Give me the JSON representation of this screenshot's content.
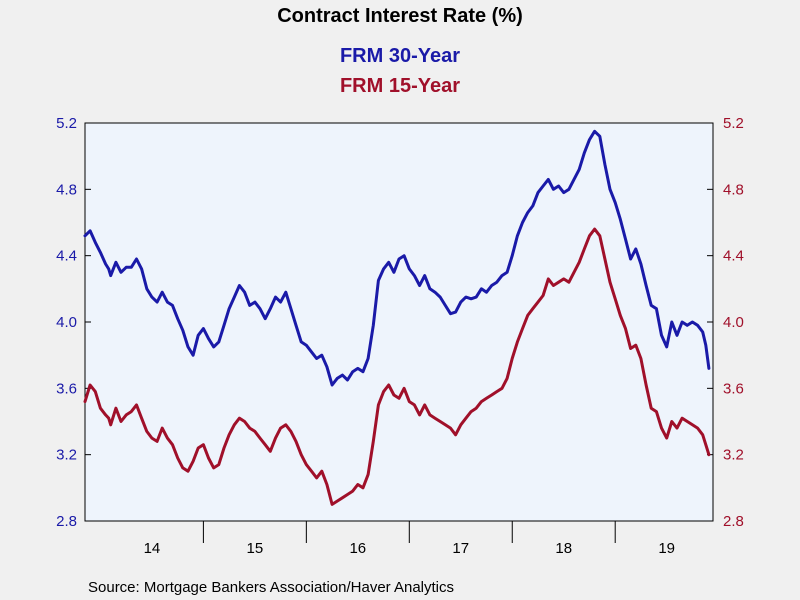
{
  "chart_data": {
    "type": "line",
    "title": "Contract Interest Rate (%)",
    "source": "Source:  Mortgage Bankers Association/Haver Analytics",
    "categories": [
      "14",
      "15",
      "16",
      "17",
      "18",
      "19"
    ],
    "y_ticks": [
      "5.2",
      "4.8",
      "4.4",
      "4.0",
      "3.6",
      "3.2",
      "2.8"
    ],
    "ylim": [
      2.8,
      5.2
    ],
    "xlim": [
      2013.85,
      2019.95
    ],
    "grid": false,
    "legend_placement": "top-center",
    "colors": {
      "plot_bg": "#eef4fc",
      "page_bg": "#f0f0f0"
    },
    "series": [
      {
        "name": "FRM 30-Year",
        "color": "#1a1aa8",
        "axis": "left",
        "points": [
          [
            2013.85,
            4.52
          ],
          [
            2013.9,
            4.55
          ],
          [
            2013.95,
            4.48
          ],
          [
            2014.0,
            4.42
          ],
          [
            2014.05,
            4.35
          ],
          [
            2014.08,
            4.32
          ],
          [
            2014.1,
            4.28
          ],
          [
            2014.15,
            4.36
          ],
          [
            2014.2,
            4.3
          ],
          [
            2014.25,
            4.33
          ],
          [
            2014.3,
            4.33
          ],
          [
            2014.35,
            4.38
          ],
          [
            2014.4,
            4.32
          ],
          [
            2014.45,
            4.2
          ],
          [
            2014.5,
            4.15
          ],
          [
            2014.55,
            4.12
          ],
          [
            2014.6,
            4.18
          ],
          [
            2014.65,
            4.12
          ],
          [
            2014.7,
            4.1
          ],
          [
            2014.75,
            4.02
          ],
          [
            2014.8,
            3.95
          ],
          [
            2014.85,
            3.85
          ],
          [
            2014.9,
            3.8
          ],
          [
            2014.95,
            3.92
          ],
          [
            2015.0,
            3.96
          ],
          [
            2015.05,
            3.9
          ],
          [
            2015.1,
            3.85
          ],
          [
            2015.15,
            3.88
          ],
          [
            2015.2,
            3.98
          ],
          [
            2015.25,
            4.08
          ],
          [
            2015.3,
            4.15
          ],
          [
            2015.35,
            4.22
          ],
          [
            2015.4,
            4.18
          ],
          [
            2015.45,
            4.1
          ],
          [
            2015.5,
            4.12
          ],
          [
            2015.55,
            4.08
          ],
          [
            2015.6,
            4.02
          ],
          [
            2015.65,
            4.08
          ],
          [
            2015.7,
            4.15
          ],
          [
            2015.75,
            4.12
          ],
          [
            2015.8,
            4.18
          ],
          [
            2015.85,
            4.08
          ],
          [
            2015.9,
            3.98
          ],
          [
            2015.95,
            3.88
          ],
          [
            2016.0,
            3.86
          ],
          [
            2016.05,
            3.82
          ],
          [
            2016.1,
            3.78
          ],
          [
            2016.15,
            3.8
          ],
          [
            2016.2,
            3.73
          ],
          [
            2016.25,
            3.62
          ],
          [
            2016.3,
            3.66
          ],
          [
            2016.35,
            3.68
          ],
          [
            2016.4,
            3.65
          ],
          [
            2016.45,
            3.7
          ],
          [
            2016.5,
            3.72
          ],
          [
            2016.55,
            3.7
          ],
          [
            2016.6,
            3.78
          ],
          [
            2016.65,
            3.98
          ],
          [
            2016.7,
            4.25
          ],
          [
            2016.75,
            4.32
          ],
          [
            2016.8,
            4.36
          ],
          [
            2016.85,
            4.3
          ],
          [
            2016.9,
            4.38
          ],
          [
            2016.95,
            4.4
          ],
          [
            2017.0,
            4.32
          ],
          [
            2017.05,
            4.28
          ],
          [
            2017.1,
            4.22
          ],
          [
            2017.15,
            4.28
          ],
          [
            2017.2,
            4.2
          ],
          [
            2017.25,
            4.18
          ],
          [
            2017.3,
            4.15
          ],
          [
            2017.35,
            4.1
          ],
          [
            2017.4,
            4.05
          ],
          [
            2017.45,
            4.06
          ],
          [
            2017.5,
            4.12
          ],
          [
            2017.55,
            4.15
          ],
          [
            2017.6,
            4.14
          ],
          [
            2017.65,
            4.15
          ],
          [
            2017.7,
            4.2
          ],
          [
            2017.75,
            4.18
          ],
          [
            2017.8,
            4.22
          ],
          [
            2017.85,
            4.24
          ],
          [
            2017.9,
            4.28
          ],
          [
            2017.95,
            4.3
          ],
          [
            2018.0,
            4.4
          ],
          [
            2018.05,
            4.52
          ],
          [
            2018.1,
            4.6
          ],
          [
            2018.15,
            4.66
          ],
          [
            2018.2,
            4.7
          ],
          [
            2018.25,
            4.78
          ],
          [
            2018.3,
            4.82
          ],
          [
            2018.35,
            4.86
          ],
          [
            2018.4,
            4.8
          ],
          [
            2018.45,
            4.82
          ],
          [
            2018.5,
            4.78
          ],
          [
            2018.55,
            4.8
          ],
          [
            2018.6,
            4.86
          ],
          [
            2018.65,
            4.92
          ],
          [
            2018.7,
            5.02
          ],
          [
            2018.75,
            5.1
          ],
          [
            2018.8,
            5.15
          ],
          [
            2018.85,
            5.12
          ],
          [
            2018.9,
            4.95
          ],
          [
            2018.95,
            4.8
          ],
          [
            2019.0,
            4.72
          ],
          [
            2019.05,
            4.62
          ],
          [
            2019.1,
            4.5
          ],
          [
            2019.15,
            4.38
          ],
          [
            2019.2,
            4.44
          ],
          [
            2019.25,
            4.35
          ],
          [
            2019.3,
            4.22
          ],
          [
            2019.35,
            4.1
          ],
          [
            2019.4,
            4.08
          ],
          [
            2019.45,
            3.92
          ],
          [
            2019.5,
            3.85
          ],
          [
            2019.55,
            4.0
          ],
          [
            2019.6,
            3.92
          ],
          [
            2019.65,
            4.0
          ],
          [
            2019.7,
            3.98
          ],
          [
            2019.75,
            4.0
          ],
          [
            2019.8,
            3.98
          ],
          [
            2019.85,
            3.94
          ],
          [
            2019.88,
            3.86
          ],
          [
            2019.91,
            3.72
          ]
        ]
      },
      {
        "name": "FRM 15-Year",
        "color": "#a0102a",
        "axis": "right",
        "points": [
          [
            2013.85,
            3.52
          ],
          [
            2013.9,
            3.62
          ],
          [
            2013.95,
            3.58
          ],
          [
            2014.0,
            3.48
          ],
          [
            2014.05,
            3.44
          ],
          [
            2014.08,
            3.42
          ],
          [
            2014.1,
            3.38
          ],
          [
            2014.15,
            3.48
          ],
          [
            2014.2,
            3.4
          ],
          [
            2014.25,
            3.44
          ],
          [
            2014.3,
            3.46
          ],
          [
            2014.35,
            3.5
          ],
          [
            2014.4,
            3.42
          ],
          [
            2014.45,
            3.34
          ],
          [
            2014.5,
            3.3
          ],
          [
            2014.55,
            3.28
          ],
          [
            2014.6,
            3.36
          ],
          [
            2014.65,
            3.3
          ],
          [
            2014.7,
            3.26
          ],
          [
            2014.75,
            3.18
          ],
          [
            2014.8,
            3.12
          ],
          [
            2014.85,
            3.1
          ],
          [
            2014.9,
            3.16
          ],
          [
            2014.95,
            3.24
          ],
          [
            2015.0,
            3.26
          ],
          [
            2015.05,
            3.18
          ],
          [
            2015.1,
            3.12
          ],
          [
            2015.15,
            3.14
          ],
          [
            2015.2,
            3.24
          ],
          [
            2015.25,
            3.32
          ],
          [
            2015.3,
            3.38
          ],
          [
            2015.35,
            3.42
          ],
          [
            2015.4,
            3.4
          ],
          [
            2015.45,
            3.36
          ],
          [
            2015.5,
            3.34
          ],
          [
            2015.55,
            3.3
          ],
          [
            2015.6,
            3.26
          ],
          [
            2015.65,
            3.22
          ],
          [
            2015.7,
            3.3
          ],
          [
            2015.75,
            3.36
          ],
          [
            2015.8,
            3.38
          ],
          [
            2015.85,
            3.34
          ],
          [
            2015.9,
            3.28
          ],
          [
            2015.95,
            3.2
          ],
          [
            2016.0,
            3.14
          ],
          [
            2016.05,
            3.1
          ],
          [
            2016.1,
            3.06
          ],
          [
            2016.15,
            3.1
          ],
          [
            2016.2,
            3.02
          ],
          [
            2016.25,
            2.9
          ],
          [
            2016.3,
            2.92
          ],
          [
            2016.35,
            2.94
          ],
          [
            2016.4,
            2.96
          ],
          [
            2016.45,
            2.98
          ],
          [
            2016.5,
            3.02
          ],
          [
            2016.55,
            3.0
          ],
          [
            2016.6,
            3.08
          ],
          [
            2016.65,
            3.28
          ],
          [
            2016.7,
            3.5
          ],
          [
            2016.75,
            3.58
          ],
          [
            2016.8,
            3.62
          ],
          [
            2016.85,
            3.56
          ],
          [
            2016.9,
            3.54
          ],
          [
            2016.95,
            3.6
          ],
          [
            2017.0,
            3.52
          ],
          [
            2017.05,
            3.5
          ],
          [
            2017.1,
            3.44
          ],
          [
            2017.15,
            3.5
          ],
          [
            2017.2,
            3.44
          ],
          [
            2017.25,
            3.42
          ],
          [
            2017.3,
            3.4
          ],
          [
            2017.35,
            3.38
          ],
          [
            2017.4,
            3.36
          ],
          [
            2017.45,
            3.32
          ],
          [
            2017.5,
            3.38
          ],
          [
            2017.55,
            3.42
          ],
          [
            2017.6,
            3.46
          ],
          [
            2017.65,
            3.48
          ],
          [
            2017.7,
            3.52
          ],
          [
            2017.75,
            3.54
          ],
          [
            2017.8,
            3.56
          ],
          [
            2017.85,
            3.58
          ],
          [
            2017.9,
            3.6
          ],
          [
            2017.95,
            3.66
          ],
          [
            2018.0,
            3.78
          ],
          [
            2018.05,
            3.88
          ],
          [
            2018.1,
            3.96
          ],
          [
            2018.15,
            4.04
          ],
          [
            2018.2,
            4.08
          ],
          [
            2018.25,
            4.12
          ],
          [
            2018.3,
            4.16
          ],
          [
            2018.35,
            4.26
          ],
          [
            2018.4,
            4.22
          ],
          [
            2018.45,
            4.24
          ],
          [
            2018.5,
            4.26
          ],
          [
            2018.55,
            4.24
          ],
          [
            2018.6,
            4.3
          ],
          [
            2018.65,
            4.36
          ],
          [
            2018.7,
            4.44
          ],
          [
            2018.75,
            4.52
          ],
          [
            2018.8,
            4.56
          ],
          [
            2018.85,
            4.52
          ],
          [
            2018.9,
            4.38
          ],
          [
            2018.95,
            4.24
          ],
          [
            2019.0,
            4.14
          ],
          [
            2019.05,
            4.04
          ],
          [
            2019.1,
            3.96
          ],
          [
            2019.15,
            3.84
          ],
          [
            2019.2,
            3.86
          ],
          [
            2019.25,
            3.78
          ],
          [
            2019.3,
            3.62
          ],
          [
            2019.35,
            3.48
          ],
          [
            2019.4,
            3.46
          ],
          [
            2019.45,
            3.36
          ],
          [
            2019.5,
            3.3
          ],
          [
            2019.55,
            3.4
          ],
          [
            2019.6,
            3.36
          ],
          [
            2019.65,
            3.42
          ],
          [
            2019.7,
            3.4
          ],
          [
            2019.75,
            3.38
          ],
          [
            2019.8,
            3.36
          ],
          [
            2019.85,
            3.32
          ],
          [
            2019.88,
            3.26
          ],
          [
            2019.91,
            3.2
          ]
        ]
      }
    ]
  }
}
